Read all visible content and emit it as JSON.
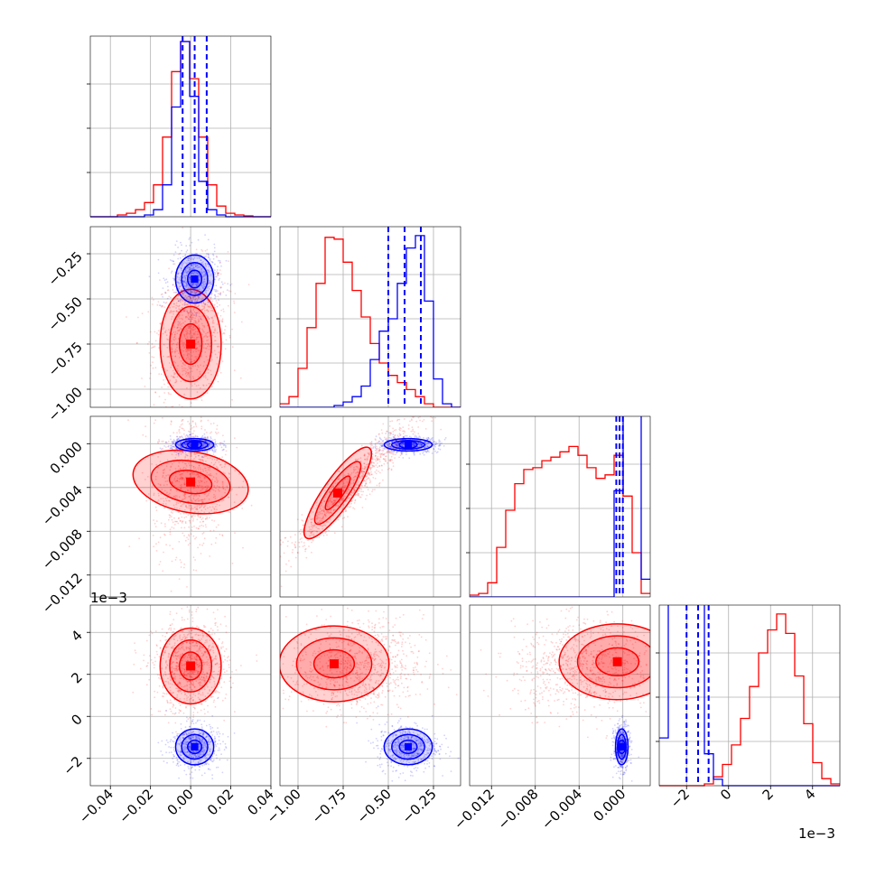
{
  "chart_data": {
    "type": "corner",
    "colors": {
      "blue": "#0000ff",
      "red": "#ff0000",
      "grid": "#b0b0b0"
    },
    "parameters": [
      {
        "range": [
          -0.05,
          0.04
        ],
        "ticks": [
          -0.04,
          -0.02,
          0.0,
          0.02,
          0.04
        ],
        "tick_labels": [
          "−0.04",
          "−0.02",
          "0.00",
          "0.02",
          "0.04"
        ]
      },
      {
        "range": [
          -1.1,
          -0.1
        ],
        "ticks": [
          -1.0,
          -0.75,
          -0.5,
          -0.25
        ],
        "tick_labels": [
          "−1.00",
          "−0.75",
          "−0.50",
          "−0.25"
        ]
      },
      {
        "range": [
          -0.014,
          0.0025
        ],
        "ticks": [
          -0.012,
          -0.008,
          -0.004,
          0.0
        ],
        "tick_labels": [
          "−0.012",
          "−0.008",
          "−0.004",
          "0.000"
        ]
      },
      {
        "range": [
          -3.3,
          5.3
        ],
        "ticks": [
          -2,
          0,
          2,
          4
        ],
        "tick_labels": [
          "−2",
          "0",
          "2",
          "4"
        ],
        "offset_label": "1e−3"
      }
    ],
    "diagonal": [
      {
        "param": 0,
        "edges": [
          -0.05,
          0.04
        ],
        "nbins": 20,
        "red": [
          0,
          0,
          0,
          0.01,
          0.02,
          0.04,
          0.08,
          0.18,
          0.45,
          0.82,
          0.99,
          0.78,
          0.45,
          0.18,
          0.06,
          0.02,
          0.01,
          0.005,
          0,
          0
        ],
        "blue": [
          0,
          0,
          0,
          0,
          0,
          0,
          0.01,
          0.04,
          0.18,
          0.62,
          0.99,
          0.68,
          0.2,
          0.04,
          0.01,
          0,
          0,
          0,
          0,
          0
        ],
        "quantiles": [
          -0.004,
          0.002,
          0.008
        ]
      },
      {
        "param": 1,
        "edges": [
          -1.1,
          -0.1
        ],
        "nbins": 20,
        "red": [
          0.02,
          0.06,
          0.22,
          0.45,
          0.7,
          0.96,
          0.95,
          0.82,
          0.66,
          0.51,
          0.36,
          0.25,
          0.18,
          0.14,
          0.1,
          0.06,
          0.02,
          0,
          0,
          0
        ],
        "blue": [
          0,
          0,
          0,
          0,
          0,
          0,
          0.01,
          0.03,
          0.06,
          0.12,
          0.27,
          0.43,
          0.5,
          0.7,
          0.9,
          0.97,
          0.6,
          0.16,
          0.02,
          0
        ],
        "quantiles": [
          -0.5,
          -0.41,
          -0.32
        ]
      },
      {
        "param": 2,
        "edges": [
          -0.014,
          0.0025
        ],
        "nbins": 20,
        "red": [
          0.01,
          0.02,
          0.08,
          0.28,
          0.49,
          0.64,
          0.72,
          0.73,
          0.77,
          0.79,
          0.82,
          0.85,
          0.8,
          0.73,
          0.67,
          0.69,
          0.8,
          0.57,
          0.25,
          0.02
        ],
        "blue": [
          0,
          0,
          0,
          0,
          0,
          0,
          0,
          0,
          0,
          0,
          0,
          0,
          0,
          0,
          0,
          0,
          0.06,
          0.99,
          0.2,
          0.01
        ],
        "blue_peak_scale": 10,
        "quantiles": [
          -0.0006,
          -0.0003,
          0.0
        ]
      },
      {
        "param": 3,
        "edges": [
          -3.3,
          5.3
        ],
        "nbins": 20,
        "red": [
          0,
          0,
          0,
          0,
          0,
          0.01,
          0.05,
          0.12,
          0.23,
          0.38,
          0.56,
          0.75,
          0.88,
          0.97,
          0.86,
          0.62,
          0.35,
          0.13,
          0.04,
          0.01
        ],
        "blue": [
          0.15,
          0.75,
          0.99,
          0.97,
          0.72,
          0.1,
          0.02,
          0,
          0,
          0,
          0,
          0,
          0,
          0,
          0,
          0,
          0,
          0,
          0,
          0
        ],
        "blue_peak_scale": 1.8,
        "quantiles": [
          -2.0,
          -1.45,
          -0.95
        ]
      }
    ],
    "distributions": {
      "blue": {
        "mean": [
          0.002,
          -0.39,
          -0.0001,
          -1.45
        ],
        "sd": [
          0.005,
          0.07,
          0.0003,
          0.45
        ]
      },
      "red": {
        "mean": [
          0.0,
          -0.68,
          -0.0035,
          2.35
        ],
        "sd": [
          0.008,
          0.16,
          0.0028,
          0.95
        ]
      }
    },
    "red_peaks": {
      "p1p0": [
        0.0,
        -0.75
      ],
      "p2p0": [
        0.0,
        -0.0035
      ],
      "p2p1": [
        -0.78,
        -0.0045
      ],
      "p3p0": [
        0.0,
        2.4
      ],
      "p3p1": [
        -0.8,
        2.5
      ],
      "p3p2": [
        -0.0005,
        2.6
      ]
    },
    "grid": true,
    "legend": "none"
  }
}
